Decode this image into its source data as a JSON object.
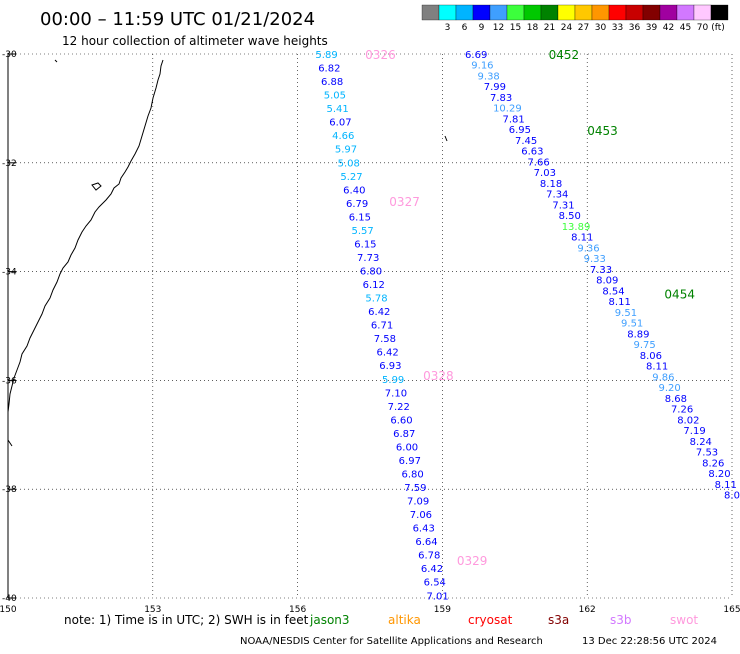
{
  "header": {
    "title": "00:00 – 11:59 UTC 01/21/2024",
    "subtitle": "12 hour collection of altimeter wave heights"
  },
  "legend": {
    "unit": "(ft)",
    "bins": [
      {
        "label": "",
        "color": "#808080"
      },
      {
        "label": "3",
        "color": "#00ffff"
      },
      {
        "label": "6",
        "color": "#00b4ff"
      },
      {
        "label": "9",
        "color": "#0000ff"
      },
      {
        "label": "12",
        "color": "#3f9fff"
      },
      {
        "label": "15",
        "color": "#3cff3c"
      },
      {
        "label": "18",
        "color": "#00c800"
      },
      {
        "label": "21",
        "color": "#008200"
      },
      {
        "label": "24",
        "color": "#ffff00"
      },
      {
        "label": "27",
        "color": "#ffc800"
      },
      {
        "label": "30",
        "color": "#ff9600"
      },
      {
        "label": "33",
        "color": "#ff0000"
      },
      {
        "label": "36",
        "color": "#c80000"
      },
      {
        "label": "39",
        "color": "#820000"
      },
      {
        "label": "42",
        "color": "#a000a0"
      },
      {
        "label": "45",
        "color": "#d278ff"
      },
      {
        "label": "70",
        "color": "#ffc8ff"
      },
      {
        "label": "",
        "color": "#000000"
      }
    ]
  },
  "map": {
    "lon_range": [
      150,
      165
    ],
    "lat_range": [
      -40,
      -30
    ],
    "x_ticks": [
      {
        "value": 150,
        "label": "150"
      },
      {
        "value": 153,
        "label": "153"
      },
      {
        "value": 156,
        "label": "156"
      },
      {
        "value": 159,
        "label": "159"
      },
      {
        "value": 162,
        "label": "162"
      },
      {
        "value": 165,
        "label": "165"
      }
    ],
    "y_ticks": [
      {
        "value": -30,
        "label": "-30"
      },
      {
        "value": -32,
        "label": "-32"
      },
      {
        "value": -34,
        "label": "-34"
      },
      {
        "value": -36,
        "label": "-36"
      },
      {
        "value": -38,
        "label": "-38"
      },
      {
        "value": -40,
        "label": "-40"
      }
    ],
    "grid": "dotted"
  },
  "chart_data": {
    "type": "scatter",
    "xlabel": "",
    "ylabel": "",
    "xlim": [
      150,
      165
    ],
    "ylim": [
      -40,
      -30
    ],
    "tracks": [
      {
        "start": [
          156.6,
          -30.0
        ],
        "end": [
          158.9,
          -39.95
        ],
        "points": [
          "5.89",
          "6.82",
          "6.88",
          "5.05",
          "5.41",
          "6.07",
          "4.66",
          "5.97",
          "5.08",
          "5.27",
          "6.40",
          "6.79",
          "6.15",
          "5.57",
          "6.15",
          "7.73",
          "6.80",
          "6.12",
          "5.78",
          "6.42",
          "6.71",
          "7.58",
          "6.42",
          "6.93",
          "5.99",
          "7.10",
          "7.22",
          "6.60",
          "6.87",
          "6.00",
          "6.97",
          "6.80",
          "7.59",
          "7.09",
          "7.06",
          "6.43",
          "6.64",
          "6.78",
          "6.42",
          "6.54",
          "7.01"
        ]
      },
      {
        "start": [
          159.7,
          -30.0
        ],
        "end": [
          165.0,
          -38.1
        ],
        "points": [
          "6.69",
          "9.16",
          "9.38",
          "7.99",
          "7.83",
          "10.29",
          "7.81",
          "6.95",
          "7.45",
          "6.63",
          "7.66",
          "7.03",
          "8.18",
          "7.34",
          "7.31",
          "8.50",
          "13.89",
          "8.11",
          "9.36",
          "9.33",
          "7.33",
          "8.09",
          "8.54",
          "8.11",
          "9.51",
          "9.51",
          "8.89",
          "9.75",
          "8.06",
          "8.11",
          "9.86",
          "9.20",
          "8.68",
          "7.26",
          "8.02",
          "7.19",
          "8.24",
          "7.53",
          "8.26",
          "8.20",
          "8.11",
          "8.0"
        ]
      }
    ],
    "passes": [
      {
        "label": "0326",
        "lon": 157.4,
        "lat": -30.0,
        "color": "#ff99dd"
      },
      {
        "label": "0327",
        "lon": 157.9,
        "lat": -32.7,
        "color": "#ff99dd"
      },
      {
        "label": "0328",
        "lon": 158.6,
        "lat": -35.9,
        "color": "#ff99dd"
      },
      {
        "label": "0329",
        "lon": 159.3,
        "lat": -39.3,
        "color": "#ff99dd"
      },
      {
        "label": "0452",
        "lon": 161.2,
        "lat": -30.0,
        "color": "#008200"
      },
      {
        "label": "0453",
        "lon": 162.0,
        "lat": -31.4,
        "color": "#008200"
      },
      {
        "label": "0454",
        "lon": 163.6,
        "lat": -34.4,
        "color": "#008200"
      }
    ]
  },
  "note": {
    "text": "note:  1) Time is in UTC; 2) SWH is in feet",
    "satellites": [
      {
        "name": "jason3",
        "color": "#008200"
      },
      {
        "name": "altika",
        "color": "#ff9600"
      },
      {
        "name": "cryosat",
        "color": "#ff0000"
      },
      {
        "name": "s3a",
        "color": "#820000"
      },
      {
        "name": "s3b",
        "color": "#d278ff"
      },
      {
        "name": "swot",
        "color": "#ff99dd"
      }
    ]
  },
  "footer": {
    "credit": "NOAA/NESDIS Center for Satellite Applications and Research",
    "timestamp": "13 Dec 22:28:56 UTC 2024"
  }
}
